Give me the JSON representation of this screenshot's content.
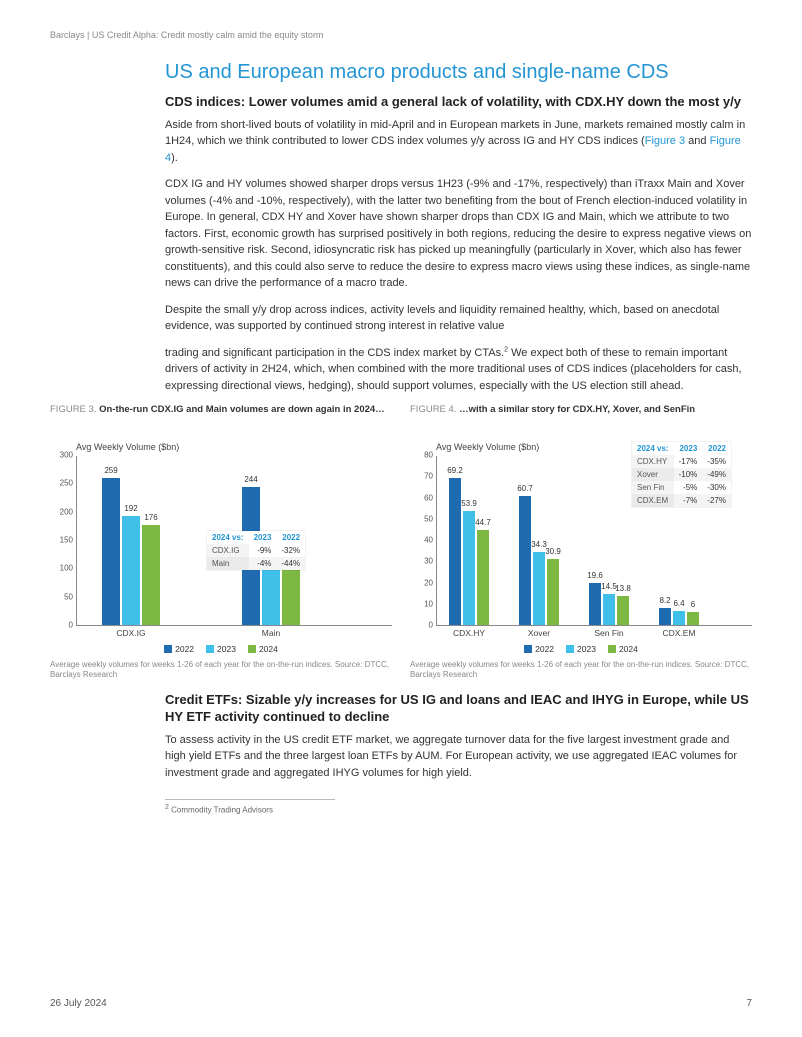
{
  "header": "Barclays | US Credit Alpha: Credit mostly calm amid the equity storm",
  "section_title": "US and European macro products and single-name CDS",
  "sub1_title": "CDS indices: Lower volumes amid a general lack of volatility, with CDX.HY down the most y/y",
  "p1": "Aside from short-lived bouts of volatility in mid-April and in European markets in June, markets remained mostly calm in 1H24, which we think contributed to lower CDS index volumes y/y across IG and HY CDS indices (",
  "p1_link1": "Figure 3",
  "p1_mid": " and ",
  "p1_link2": "Figure 4",
  "p1_end": ").",
  "p2": "CDX IG and HY volumes showed sharper drops versus 1H23 (-9% and -17%, respectively) than iTraxx Main and Xover volumes (-4% and -10%, respectively), with the latter two benefiting from the bout of French election-induced volatility in Europe. In general, CDX HY and Xover have shown sharper drops than CDX IG and Main, which we attribute to two factors. First, economic growth has surprised positively in both regions, reducing the desire to express negative views on growth-sensitive risk. Second, idiosyncratic risk has picked up meaningfully (particularly in Xover, which also has fewer constituents), and this could also serve to reduce the desire to express macro views using these indices, as single-name news can drive the performance of a macro trade.",
  "p3a": "Despite the small y/y drop across indices, activity levels and liquidity remained healthy, which, based on anecdotal evidence, was supported by continued strong interest in relative value",
  "p3b": "trading and significant participation in the CDS index market by CTAs.",
  "p3b_sup": "2",
  "p3b_cont": " We expect both of these to remain important drivers of activity in 2H24, which, when combined with the more traditional uses of CDS indices (placeholders for cash, expressing directional views, hedging), should support volumes, especially with the US election still ahead.",
  "fig3": {
    "label": "FIGURE 3.",
    "title": "On-the-run CDX.IG and Main volumes are down again in 2024…",
    "y_title": "Avg Weekly Volume ($bn)",
    "ymax": 300,
    "yticks": [
      0,
      50,
      100,
      150,
      200,
      250,
      300
    ],
    "categories": [
      "CDX.IG",
      "Main"
    ],
    "series": [
      "2022",
      "2023",
      "2024"
    ],
    "colors": [
      "#1f6bb0",
      "#40c0e8",
      "#7db942"
    ],
    "data": [
      [
        259,
        192,
        176
      ],
      [
        244,
        142,
        136
      ]
    ],
    "inset": {
      "header": [
        "2024 vs:",
        "2023",
        "2022"
      ],
      "rows": [
        [
          "CDX.IG",
          "-9%",
          "-32%"
        ],
        [
          "Main",
          "-4%",
          "-44%"
        ]
      ]
    },
    "source": "Average weekly volumes for weeks 1-26 of each year for the on-the-run indices. Source: DTCC, Barclays Research"
  },
  "fig4": {
    "label": "FIGURE 4.",
    "title": "…with a similar story for CDX.HY, Xover, and SenFin",
    "y_title": "Avg Weekly Volume ($bn)",
    "ymax": 80,
    "yticks": [
      0,
      10,
      20,
      30,
      40,
      50,
      60,
      70,
      80
    ],
    "categories": [
      "CDX.HY",
      "Xover",
      "Sen Fin",
      "CDX.EM"
    ],
    "series": [
      "2022",
      "2023",
      "2024"
    ],
    "colors": [
      "#1f6bb0",
      "#40c0e8",
      "#7db942"
    ],
    "data": [
      [
        69.2,
        53.9,
        44.7
      ],
      [
        60.7,
        34.3,
        30.9
      ],
      [
        19.6,
        14.5,
        13.8
      ],
      [
        8.2,
        6.4,
        6.0
      ]
    ],
    "inset": {
      "header": [
        "2024 vs:",
        "2023",
        "2022"
      ],
      "rows": [
        [
          "CDX.HY",
          "-17%",
          "-35%"
        ],
        [
          "Xover",
          "-10%",
          "-49%"
        ],
        [
          "Sen Fin",
          "-5%",
          "-30%"
        ],
        [
          "CDX.EM",
          "-7%",
          "-27%"
        ]
      ]
    },
    "source": "Average weekly volumes for weeks 1-26 of each year for the on-the-run indices. Source: DTCC, Barclays Research"
  },
  "sub2_title": "Credit ETFs: Sizable y/y increases for US IG and loans and IEAC and IHYG in Europe, while US HY ETF activity continued to decline",
  "p4": "To assess activity in the US credit ETF market, we aggregate turnover data for the five largest investment grade and high yield ETFs and the three largest loan ETFs by AUM. For European activity, we use aggregated IEAC volumes for investment grade and aggregated IHYG volumes for high yield.",
  "footnote_num": "2",
  "footnote_text": " Commodity Trading Advisors",
  "footer_date": "26 July 2024",
  "footer_page": "7"
}
